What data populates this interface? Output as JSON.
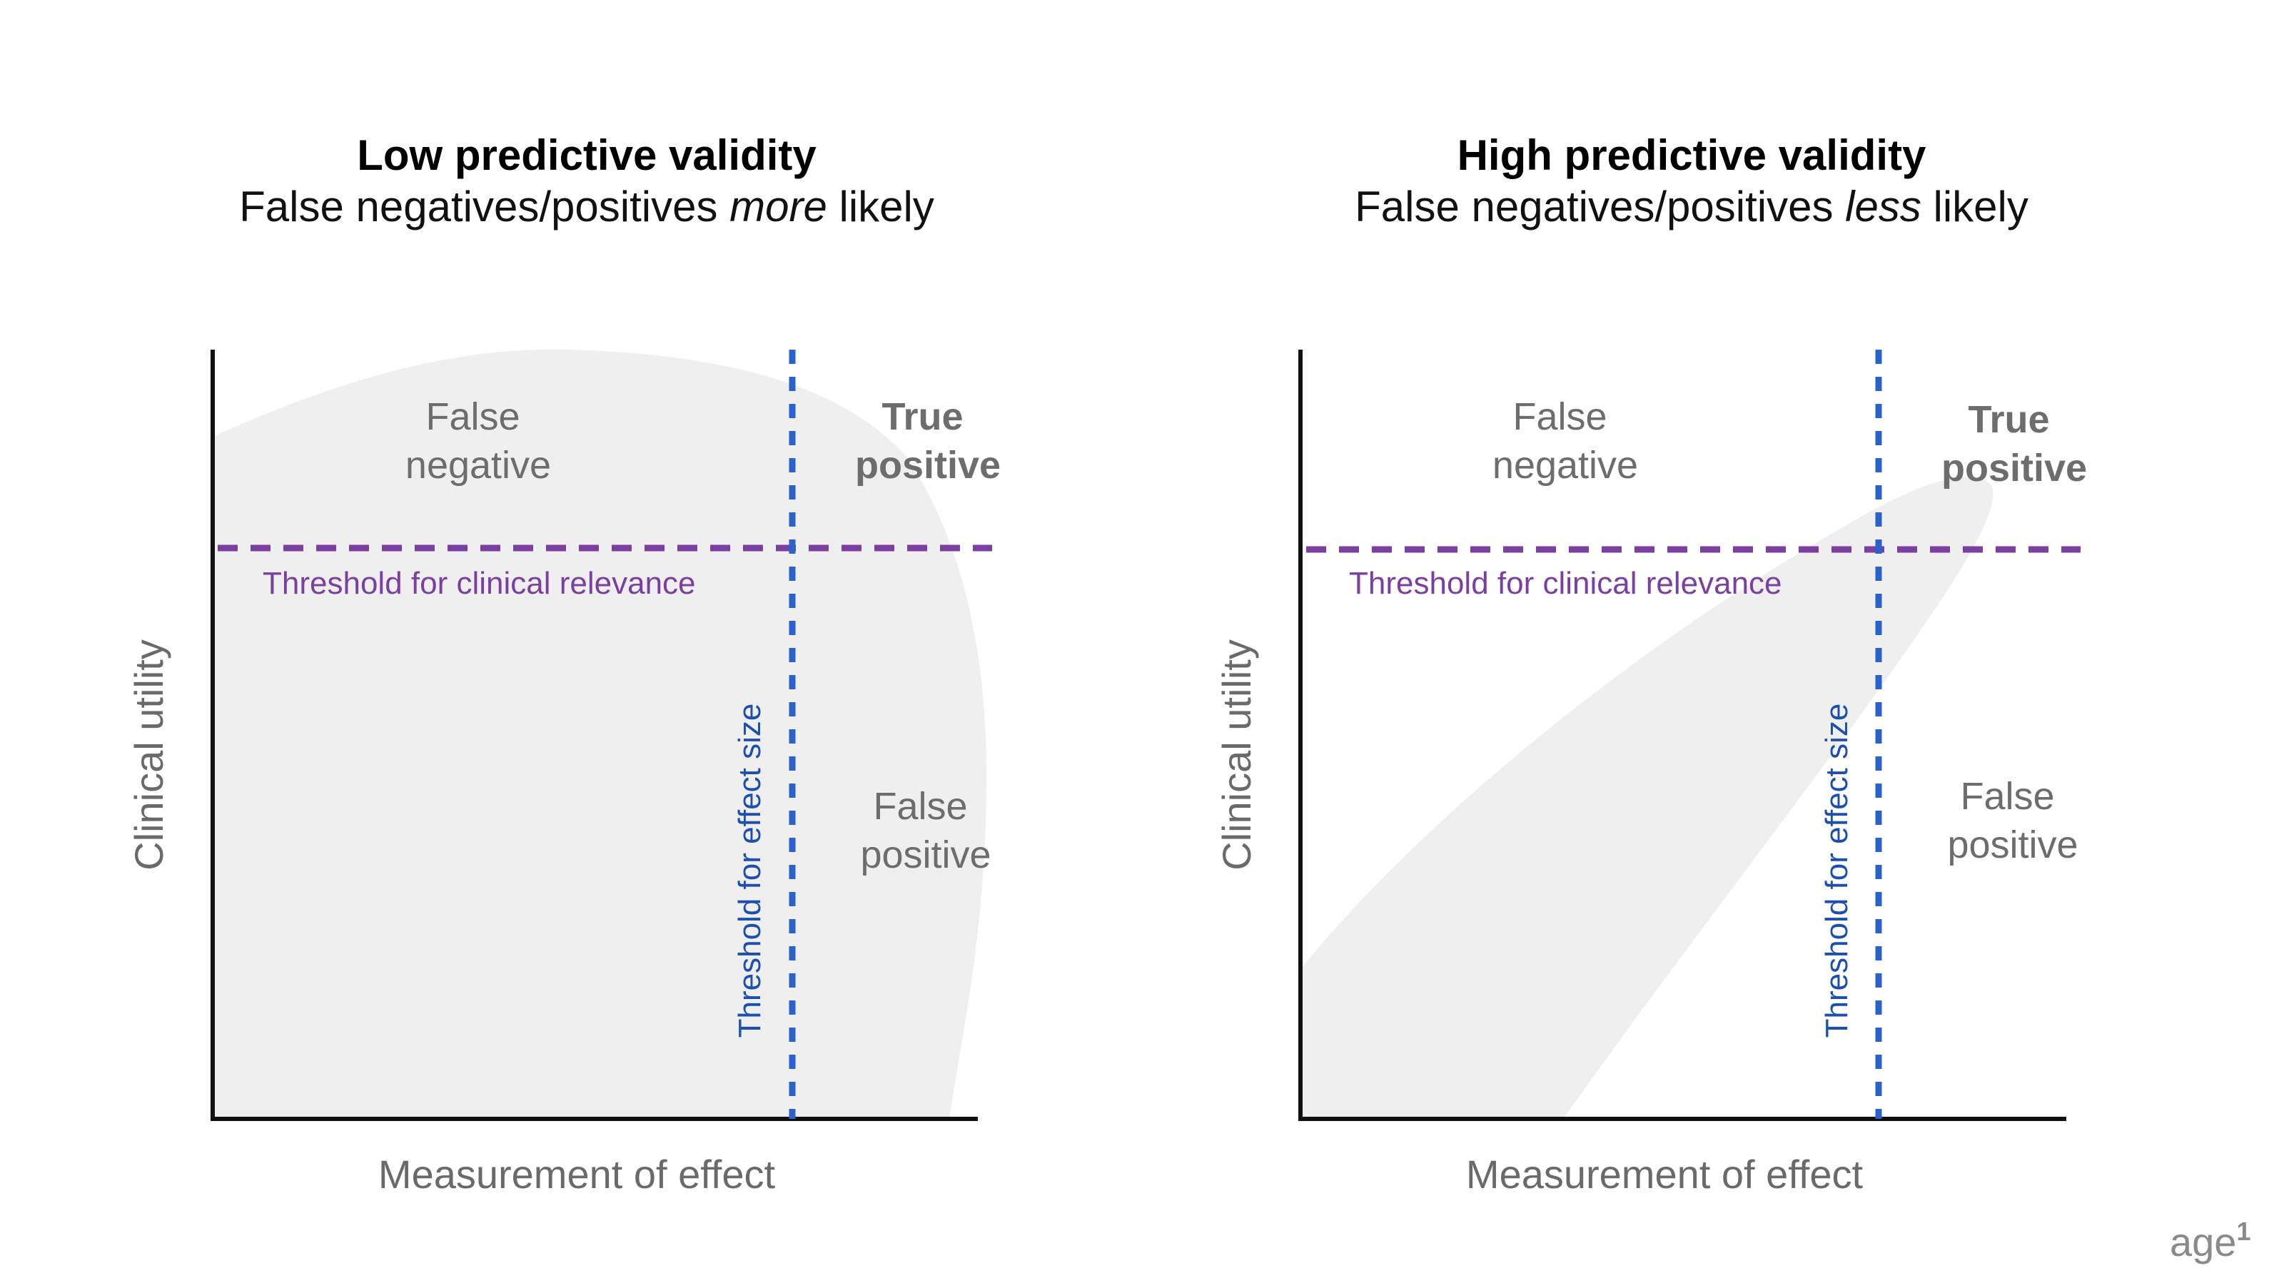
{
  "panels": [
    {
      "title": "Low predictive validity",
      "subtitle_pre": "False negatives/positives ",
      "subtitle_em": "more",
      "subtitle_post": " likely",
      "top_left_label": [
        "False",
        "negative"
      ],
      "top_right_label": [
        "True",
        "positive"
      ],
      "bottom_right_label": [
        "False",
        "positive"
      ],
      "h_threshold_label": "Threshold for clinical relevance",
      "v_threshold_label": "Threshold for effect size",
      "y_axis_label": "Clinical utility",
      "x_axis_label": "Measurement of effect"
    },
    {
      "title": "High predictive validity",
      "subtitle_pre": "False negatives/positives ",
      "subtitle_em": "less",
      "subtitle_post": " likely",
      "top_left_label": [
        "False",
        "negative"
      ],
      "top_right_label": [
        "True",
        "positive"
      ],
      "bottom_right_label": [
        "False",
        "positive"
      ],
      "h_threshold_label": "Threshold for clinical relevance",
      "v_threshold_label": "Threshold for effect size",
      "y_axis_label": "Clinical utility",
      "x_axis_label": "Measurement of effect"
    }
  ],
  "logo": {
    "text": "age",
    "superscript": "1"
  },
  "colors": {
    "cloud": "#efefef",
    "axis": "#111111",
    "h_threshold": "#7a3fa0",
    "v_threshold": "#2a62c9",
    "quadrant_text": "#6d6d6d"
  }
}
